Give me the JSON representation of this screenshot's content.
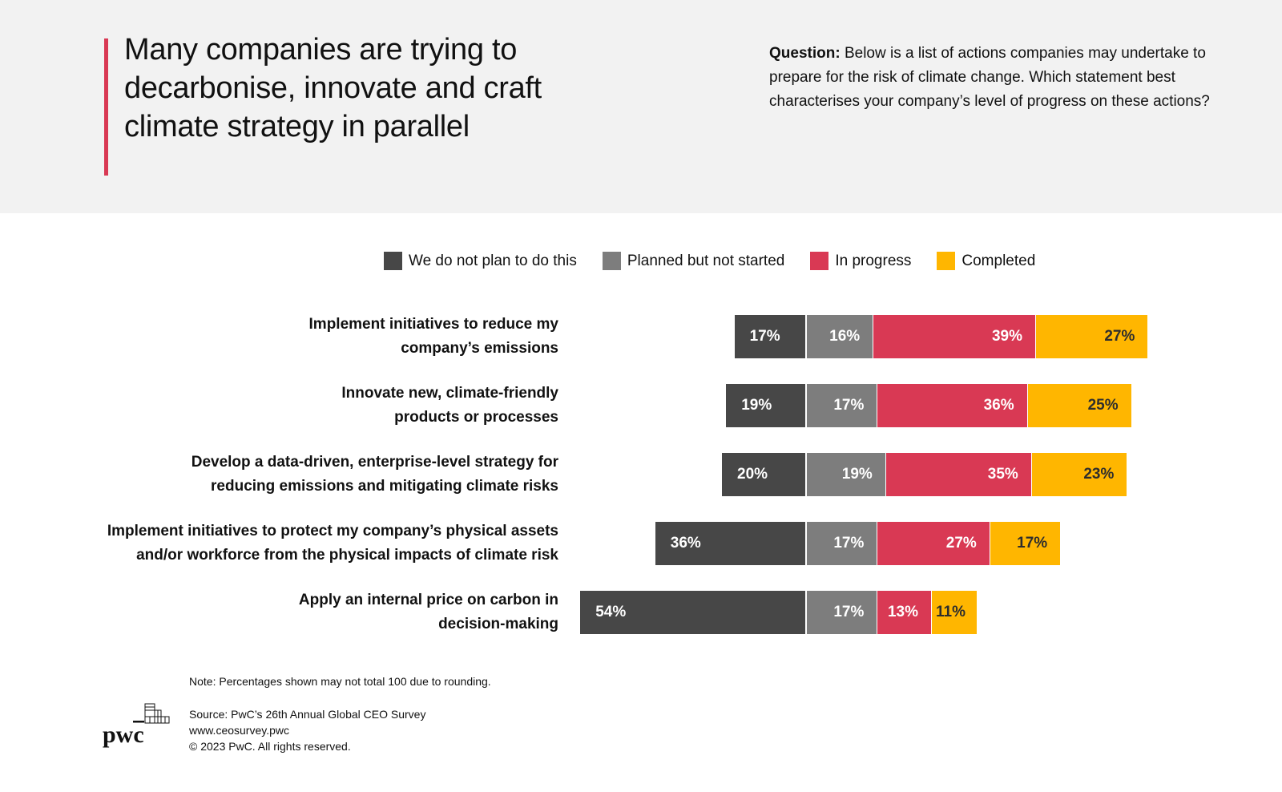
{
  "header": {
    "title": "Many companies are trying to decarbonise, innovate and craft climate strategy in parallel",
    "question_label": "Question:",
    "question_text": " Below is a list of actions companies may undertake to prepare for the risk of climate change. Which statement best characterises your company’s level of progress on these actions?",
    "accent_color": "#d93954"
  },
  "chart_data": {
    "type": "bar",
    "orientation": "horizontal-diverging-stacked",
    "title": "Many companies are trying to decarbonise, innovate and craft climate strategy in parallel",
    "xlabel": "",
    "ylabel": "",
    "legend_position": "top",
    "grid": false,
    "categories": [
      "Implement initiatives to reduce my company’s emissions",
      "Innovate new, climate-friendly products or processes",
      "Develop a data-driven, enterprise-level strategy for reducing emissions and mitigating climate risks",
      "Implement initiatives to protect my company’s physical assets and/or workforce from the physical impacts of climate risk",
      "Apply an internal price on carbon in decision-making"
    ],
    "category_lines": [
      [
        "Implement initiatives to reduce my",
        "company’s emissions"
      ],
      [
        "Innovate new, climate-friendly",
        "products or processes"
      ],
      [
        "Develop a data-driven, enterprise-level strategy for",
        "reducing emissions and mitigating climate risks"
      ],
      [
        "Implement initiatives to protect my company’s physical assets",
        "and/or workforce from the physical impacts of climate risk"
      ],
      [
        "Apply an internal price on carbon in",
        "decision-making"
      ]
    ],
    "series": [
      {
        "name": "We do not plan to do this",
        "color": "#474747",
        "label_color": "#ffffff",
        "side": "left",
        "values": [
          17,
          19,
          20,
          36,
          54
        ]
      },
      {
        "name": "Planned but not started",
        "color": "#7d7d7d",
        "label_color": "#ffffff",
        "side": "right",
        "values": [
          16,
          17,
          19,
          17,
          17
        ]
      },
      {
        "name": "In progress",
        "color": "#d93954",
        "label_color": "#ffffff",
        "side": "right",
        "values": [
          39,
          36,
          35,
          27,
          13
        ]
      },
      {
        "name": "Completed",
        "color": "#ffb600",
        "label_color": "#2d2d2d",
        "side": "right",
        "values": [
          27,
          25,
          23,
          17,
          11
        ]
      }
    ],
    "value_suffix": "%"
  },
  "footer": {
    "note": "Note: Percentages shown may not total 100 due to rounding.",
    "source": "Source: PwC’s 26th Annual Global CEO Survey",
    "url": "www.ceosurvey.pwc",
    "copyright": "© 2023 PwC. All rights reserved.",
    "logo_text": "pwc"
  }
}
